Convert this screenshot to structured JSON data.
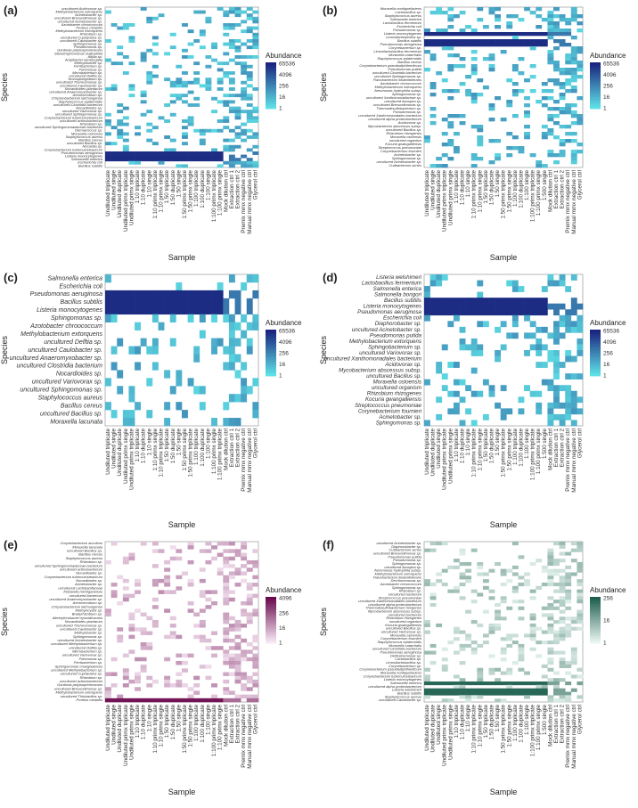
{
  "figure": {
    "panel_labels": [
      "(a)",
      "(b)",
      "(c)",
      "(d)",
      "(e)",
      "(f)"
    ]
  },
  "chart_data": [
    {
      "type": "heatmap",
      "panel": "(a)",
      "xlabel": "Sample",
      "ylabel": "Species",
      "legend_title": "Abundance",
      "legend_ticks": [
        "65536",
        "4096",
        "256",
        "16",
        "1"
      ],
      "color_low": "#5ee0e6",
      "color_high": "#1a237e",
      "x_categories": [
        "Undiluted triplicate",
        "Undiluted single",
        "Undiluted duplicate",
        "Undiluted primx triplicate",
        "Undiluted primx single",
        "1:10 triplicate",
        "1:10 duplicate",
        "1:10 single",
        "1:10 primx triplicate",
        "1:10 primx single",
        "1:50 triplicate",
        "1:50 duplicate",
        "1:50 single",
        "1:50 primx triplicate",
        "1:50 primx single",
        "1:100 triplicate",
        "1:100 duplicate",
        "1:100 single",
        "1:100 primx triplicate",
        "1:100 primx single",
        "Mock dilution ctrl",
        "Extraction ctrl 1",
        "Extraction ctrl 2",
        "Premix mmx negative ctrl",
        "Manual mmx negative ctrl",
        "Glycerol ctrl"
      ],
      "y_categories": [
        "uncultured Acidovorax sp.",
        "Methylobacterium extorquens",
        "Acinetobacter sp.",
        "uncultured Brevundimonas sp.",
        "uncultured Acinetobacter sp.",
        "Azotobacter chroococcum",
        "Proteus mirabilis",
        "Methylobacterium extorquens",
        "Rhizobium sp.",
        "uncultured Cupriavidus sp.",
        "uncultured Caulobacter sp.",
        "Sphingomonas sp.",
        "Pseudomonas sp.",
        "Gordonia polyisoprenivorans",
        "Stenotrophomonas maltophilia",
        "Afipia sp.",
        "Ampibacter lamburgalla",
        "Methylobacter sp.",
        "Ferribacterium sp.",
        "Pelomonas sp.",
        "Microbacterium sp.",
        "uncultured Delftia sp.",
        "Novosphingobium sp.",
        "uncultured Thermomonas sp.",
        "uncultured Caulobacter sp.",
        "Nocardioides plantarum",
        "uncultured Anaeromyxobacter sp.",
        "Aeromicrobium sp.",
        "Chryseobacterium taichungense",
        "Staphylococcus epidermidis",
        "uncultured Clostridia bacterium",
        "Nocardioides sp.",
        "uncultured Variovorax sp.",
        "uncultured Sphingomonas sp.",
        "Corynebacterium tuberculostearicum",
        "uncultured actinobacterium",
        "Rhizobium sp.",
        "uncultured Sphingomonadaceae bacterium",
        "Dermacoccus sp.",
        "Moraxella osloensis",
        "Staphylococcus aureus",
        "Bacillus cereus",
        "uncultured Bacillus sp.",
        "Nocardia sp.",
        "Corynebacterium tuberculostearicum",
        "Pseudomonas aeruginosa",
        "Listeria monocytogenes",
        "Salmonella enterica",
        "Escherichia coli",
        "Bacillus subtilis"
      ],
      "dominant_rows": [
        "Pseudomonas aeruginosa",
        "Listeria monocytogenes",
        "Salmonella enterica"
      ]
    },
    {
      "type": "heatmap",
      "panel": "(b)",
      "xlabel": "Sample",
      "ylabel": "Species",
      "legend_title": "Abundance",
      "legend_ticks": [
        "65536",
        "4096",
        "256",
        "16",
        "1"
      ],
      "color_low": "#5ee0e6",
      "color_high": "#1a237e",
      "x_categories": [
        "Undiluted triplicate",
        "Undiluted single",
        "Undiluted duplicate",
        "Undiluted primx triplicate",
        "Undiluted primx single",
        "1:10 triplicate",
        "1:10 duplicate",
        "1:10 single",
        "1:10 primx triplicate",
        "1:10 primx single",
        "1:50 triplicate",
        "1:50 duplicate",
        "1:50 single",
        "1:50 primx triplicate",
        "1:50 primx single",
        "1:100 triplicate",
        "1:100 duplicate",
        "1:100 single",
        "1:100 primx triplicate",
        "1:100 primx single",
        "1:500 single",
        "Mock dilution ctrl",
        "Extraction ctrl 1",
        "Extraction ctrl 2",
        "Premix mmx negative ctrl",
        "Manual mmx negative ctrl",
        "Glycerol ctrl"
      ],
      "y_categories": [
        "Moraxella nonliquefaciens",
        "Lactobacillus sp.",
        "Staphylococcus aureus",
        "Salmonella enterica",
        "Lactobacillus fermentum",
        "Escherichia coli",
        "Pseudomonas sp.",
        "Listeria monocytogenes",
        "Limosilactobacillus sp.",
        "Bacillus subtilis",
        "Pseudomonas aeruginosa",
        "Corynebacterium sp.",
        "Limosilactobacillus fermentum",
        "Moraxella catarrhalis",
        "Staphylococcus epidermidis",
        "Bacillus cereus",
        "Corynebacterium pseudodiphtheriticum",
        "Pseudomonas putida",
        "uncultured Clostridia bacterium",
        "uncultured Sphingomonas sp.",
        "Flavobacterium lindanitolerans",
        "Azotobacter chroococcum",
        "Methylobacterium extorquens",
        "Aeromonas hydrophila subsp.",
        "Sphingomonas sp.",
        "uncultured Xanthomonadaceae sp.",
        "uncultured Azospira sp.",
        "uncultured Brevundimonas sp.",
        "Thermodesulfobacterium sp.",
        "Pseudomonas sp.",
        "uncultured Xanthomonadales bacterium",
        "uncultured alpha proteobacterium",
        "Acidovorax sp.",
        "Mycobacterium abscessus subsp.",
        "uncultured Bacillus sp.",
        "Rhizobium rhizogenes",
        "Moraxella osloensis",
        "uncultured organism",
        "Kocuria gwangalliensis",
        "Streptococcus pneumoniae",
        "Corynebacterium fournieri",
        "Acinetobacter sp.",
        "Sphingomonas sp.",
        "uncultured Acinetobacter sp.",
        "Cutibacterium acnes"
      ],
      "dominant_rows": [
        "Listeria monocytogenes",
        "Bacillus subtilis",
        "Pseudomonas aeruginosa"
      ]
    },
    {
      "type": "heatmap",
      "panel": "(c)",
      "xlabel": "Sample",
      "ylabel": "Species",
      "legend_title": "Abundance",
      "legend_ticks": [
        "65536",
        "4096",
        "256",
        "16",
        "1"
      ],
      "color_low": "#5ee0e6",
      "color_high": "#1a237e",
      "x_categories": [
        "Undiluted triplicate",
        "Undiluted single",
        "Undiluted duplicate",
        "Undiluted primx single",
        "Undiluted primx triplicate",
        "1:10 triplicate",
        "1:10 duplicate",
        "1:10 single",
        "1:10 primx single",
        "1:10 primx triplicate",
        "1:50 triplicate",
        "1:50 duplicate",
        "1:50 single",
        "1:50 primx single",
        "1:50 primx triplicate",
        "1:100 triplicate",
        "1:100 duplicate",
        "1:100 single",
        "1:100 primx single",
        "1:100 primx triplicate",
        "Mock dilution ctrl",
        "Extraction ctrl 1",
        "Extraction ctrl 2",
        "Premix mmx negative ctrl",
        "Manual mmx negative ctrl",
        "Glycerol ctrl"
      ],
      "y_categories": [
        "Salmonella enterica",
        "Escherichia coli",
        "Pseudomonas aeruginosa",
        "Bacillus subtilis",
        "Listeria monocytogenes",
        "Sphingomonas sp.",
        "Azotobacter chroococcum",
        "Methylobacterium extorquens",
        "uncultured Delftia sp.",
        "uncultured Caulobacter sp.",
        "uncultured Anaeromyxobacter sp.",
        "uncultured Clostridia bacterium",
        "Nocardioides sp.",
        "uncultured Variovorax sp.",
        "uncultured Sphingomonas sp.",
        "Staphylococcus aureus",
        "Bacillus cereus",
        "uncultured Bacillus sp.",
        "Moraxella lacunata"
      ],
      "dominant_rows": [
        "Pseudomonas aeruginosa",
        "Bacillus subtilis",
        "Listeria monocytogenes"
      ]
    },
    {
      "type": "heatmap",
      "panel": "(d)",
      "xlabel": "Sample",
      "ylabel": "Species",
      "legend_title": "Abundance",
      "legend_ticks": [
        "65536",
        "4096",
        "256",
        "16",
        "1"
      ],
      "color_low": "#5ee0e6",
      "color_high": "#1a237e",
      "x_categories": [
        "Undiluted triplicate",
        "Undiluted duplicate",
        "Undiluted single",
        "Undiluted primx triplicate",
        "Undiluted primx single",
        "1:10 triplicate",
        "1:10 duplicate",
        "1:10 single",
        "1:10 primx triplicate",
        "1:10 primx single",
        "1:50 triplicate",
        "1:50 duplicate",
        "1:50 single",
        "1:50 primx triplicate",
        "1:50 primx single",
        "1:100 triplicate",
        "1:100 duplicate",
        "1:100 single",
        "1:100 primx triplicate",
        "1:100 primx single",
        "1:500 single",
        "Mock dilution ctrl",
        "Extraction ctrl 1",
        "Extraction ctrl 2",
        "Premix mmx negative ctrl",
        "Manual mmx negative ctrl",
        "Glycerol ctrl"
      ],
      "y_categories": [
        "Listeria welshimeri",
        "Lactobacillus fermentum",
        "Salmonella enterica",
        "Salmonella bongori",
        "Bacillus subtilis",
        "Listeria monocytogenes",
        "Pseudomonas aeruginosa",
        "Escherichia coli",
        "Diaphorobacter sp.",
        "uncultured Acinetobacter sp.",
        "Pseudomonas putida",
        "Methylobacterium extorquens",
        "Sphingobacterium sp.",
        "uncultured Variovorax sp.",
        "uncultured Xanthomonadales bacterium",
        "Acidovorax sp.",
        "Mycobacterium abscessus subsp.",
        "uncultured Bacillus sp.",
        "Moraxella osloensis",
        "uncultured organism",
        "Rhizobium rhizogenes",
        "Kocuria gwangalliensis",
        "Streptococcus pneumoniae",
        "Corynebacterium fournieri",
        "Acinetobacter sp.",
        "Sphingomonas sp."
      ],
      "dominant_rows": [
        "Bacillus subtilis",
        "Listeria monocytogenes",
        "Pseudomonas aeruginosa"
      ]
    },
    {
      "type": "heatmap",
      "panel": "(e)",
      "xlabel": "Sample",
      "ylabel": "Species",
      "legend_title": "Abundance",
      "legend_ticks": [
        "4096",
        "256",
        "16",
        "1"
      ],
      "color_low": "#f6e7f3",
      "color_high": "#6a0a4e",
      "x_categories": [
        "Undiluted triplicate",
        "Undiluted single",
        "Undiluted duplicate",
        "Undiluted primx triplicate",
        "Undiluted primx single",
        "1:10 triplicate",
        "1:10 duplicate",
        "1:10 single",
        "1:10 primx triplicate",
        "1:10 primx single",
        "1:50 triplicate",
        "1:50 duplicate",
        "1:50 single",
        "1:50 primx triplicate",
        "1:50 primx single",
        "1:100 triplicate",
        "1:100 duplicate",
        "1:100 single",
        "1:100 primx triplicate",
        "1:100 primx single",
        "Mock dilution ctrl",
        "Extraction ctrl 1",
        "Extraction ctrl 2",
        "Premix mmx negative ctrl",
        "Manual mmx negative ctrl",
        "Glycerol ctrl"
      ],
      "y_categories": [
        "Corynebacterium accolens",
        "Moraxella lacunata",
        "uncultured Bacillus sp.",
        "Bacillus cereus",
        "Staphylococcus aureus",
        "Rhizobium sp.",
        "uncultured Sphingomonadaceae bacterium",
        "uncultured actinobacterium",
        "Nocardioides sp.",
        "Corynebacterium tuberculostearicum",
        "Nocardioides sp.",
        "Acinetobacter sp.",
        "uncultured Lactobacillaceae",
        "Klebsiella michiganensis",
        "uncultured bacterium",
        "uncultured Anaeromyxobacter sp.",
        "Aeromicrobium sp.",
        "Chryseobacterium taichungense",
        "Methylocystis sp.",
        "Bradyrhizobium sp.",
        "Alteerythrobacter epoxidivorans",
        "Nocardioides plantarum",
        "uncultured Thermomonas sp.",
        "uncultured Caulobacter sp.",
        "Methylobacter sp.",
        "Sphingomonas sp.",
        "uncultured Acinetobacter sp.",
        "uncultured Methylobacterium sp.",
        "uncultured Delftia sp.",
        "Microbacterium sp.",
        "uncultured Variovorax sp.",
        "Pelomonas sp.",
        "Ferribacterium sp.",
        "Sphingomonas changbaiensis",
        "uncultured Methylobacterium sp.",
        "uncultured Cupriavidus sp.",
        "Rhizobium sp.",
        "uncultured actinobacterium",
        "Gordonia polyisoprenivorans",
        "uncultured Brevundimonas sp.",
        "Methylobacterium extorquens",
        "uncultured Thiobacillus sp.",
        "Proteus mirabilis"
      ],
      "dominant_rows": [
        "Proteus mirabilis"
      ]
    },
    {
      "type": "heatmap",
      "panel": "(f)",
      "xlabel": "Sample",
      "ylabel": "Species",
      "legend_title": "Abundance",
      "legend_ticks": [
        "256",
        "16",
        "1"
      ],
      "color_low": "#e8f5f1",
      "color_high": "#1e5e4e",
      "x_categories": [
        "Undiluted triplicate",
        "Undiluted duplicate",
        "Undiluted single",
        "Undiluted primx triplicate",
        "Undiluted primx single",
        "1:10 triplicate",
        "1:10 duplicate",
        "1:10 single",
        "1:10 primx triplicate",
        "1:10 primx single",
        "1:50 triplicate",
        "1:50 duplicate",
        "1:50 single",
        "1:50 primx triplicate",
        "1:50 primx single",
        "1:100 triplicate",
        "1:100 duplicate",
        "1:100 single",
        "1:100 primx triplicate",
        "1:100 primx single",
        "1:500 single",
        "Mock dilution ctrl",
        "Extraction ctrl 1",
        "Extraction ctrl 2",
        "Premix mmx negative ctrl",
        "Manual mmx negative ctrl",
        "Glycerol ctrl"
      ],
      "y_categories": [
        "uncultured Acinetobacter sp.",
        "Diaphorobacter sp.",
        "Cutibacterium acnes",
        "uncultured Brevundimonas sp.",
        "Pseudomonas putida",
        "Pseudomonas sp.",
        "Sphingomonas sp.",
        "uncultured Azospira sp.",
        "Aeromonas hydrophila subsp.",
        "Methylobacterium extorquens",
        "Flavobacterium lindanitolerans",
        "Dechloromonas sp.",
        "Azotobacter chroococcum",
        "Sphingomonas sp.",
        "Rhizobium sp.",
        "uncultured bacterium",
        "Streptococcus pneumoniae",
        "uncultured Xanthomonadales bacterium",
        "uncultured alpha proteobacterium",
        "Thermodesulfobacterium hengense",
        "Mycobacterium abscessus subsp.",
        "uncultured bacterium",
        "Rhizobium rhizogenes",
        "uncultured organism",
        "Kocuria gwangalliensis",
        "uncultured Bacillus sp.",
        "uncultured Variovorax sp.",
        "Moraxella osloensis",
        "Corynebacterium fournieri",
        "Staphylococcus epidermidis",
        "Moraxella catarrhalis",
        "uncultured Clostridia bacterium",
        "Pseudomonas aeruginosa",
        "Delitsohemonas sp.",
        "Lactobacillus sp.",
        "Limosilactobacillus sp.",
        "Corynebacterium sp.",
        "Corynebacterium pseudodiphtheriticum",
        "Moraxella nonliquefaciens",
        "Corynebacterium tuberculostearicum",
        "Listeria monocytogenes",
        "Salmonella enterica",
        "uncultured alpha proteobacterium",
        "Listeria welshimeri",
        "Bacillus subtilis",
        "Staphylococcus aureus",
        "uncultured Caulobacter sp."
      ],
      "dominant_rows": [
        "Listeria welshimeri",
        "Bacillus subtilis",
        "Salmonella enterica"
      ]
    }
  ]
}
